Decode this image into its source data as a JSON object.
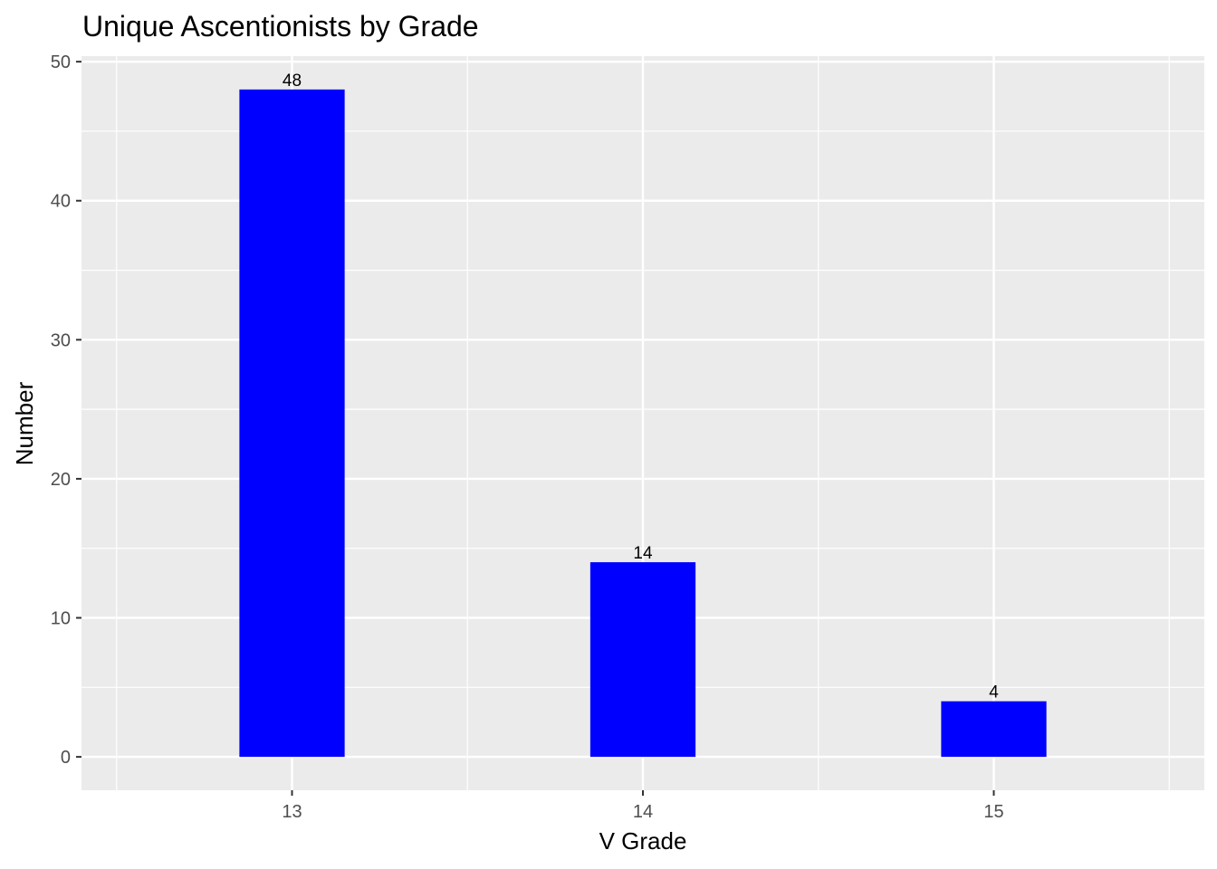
{
  "chart_data": {
    "type": "bar",
    "title": "Unique Ascentionists by Grade",
    "xlabel": "V Grade",
    "ylabel": "Number",
    "categories": [
      "13",
      "14",
      "15"
    ],
    "values": [
      48,
      14,
      4
    ],
    "data_labels": [
      "48",
      "14",
      "4"
    ],
    "ylim": [
      -2.4,
      50.4
    ],
    "y_ticks": [
      0,
      10,
      20,
      30,
      40,
      50
    ],
    "y_tick_labels": [
      "0",
      "10",
      "20",
      "30",
      "40",
      "50"
    ],
    "grid": true,
    "legend": "none",
    "colors": {
      "bar": "#0000ff",
      "panel_background": "#ebebeb",
      "grid": "#ffffff",
      "tick_text": "#4d4d4d",
      "tick_mark": "#333333"
    }
  }
}
